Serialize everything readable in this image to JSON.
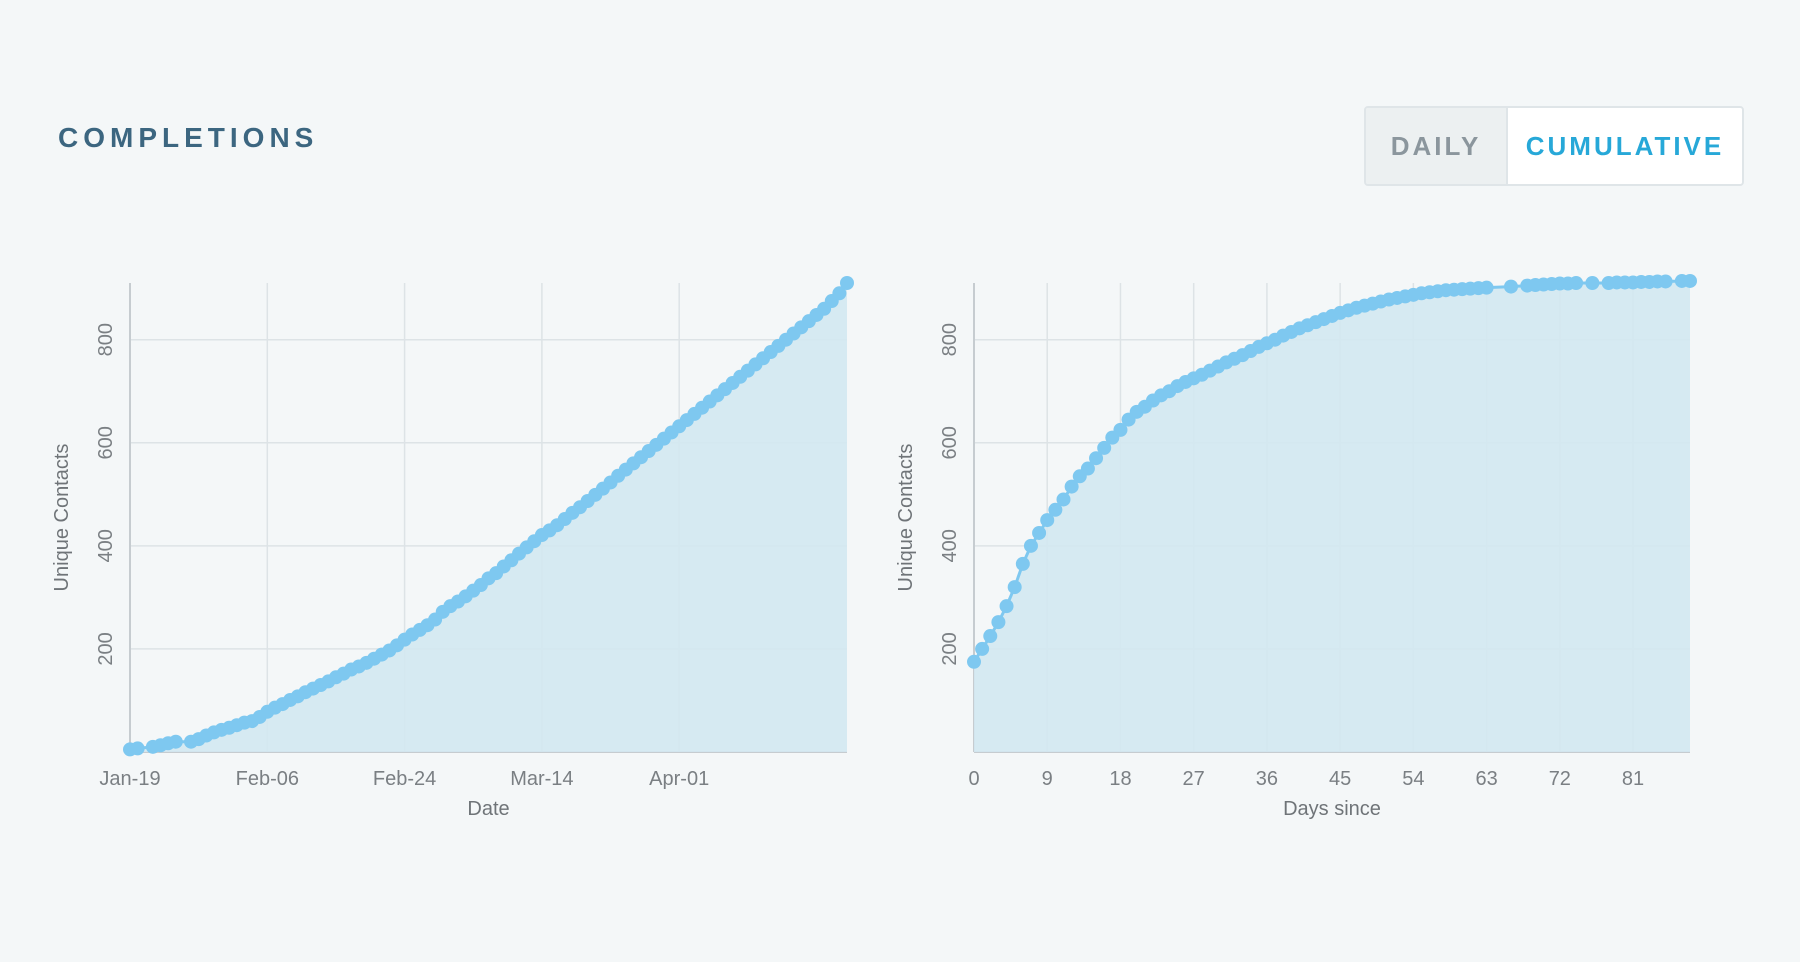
{
  "header": {
    "title": "COMPLETIONS",
    "toggle": {
      "daily_label": "DAILY",
      "cumulative_label": "CUMULATIVE",
      "selected": "CUMULATIVE"
    }
  },
  "colors": {
    "accent": "#27a8d8",
    "point": "#7ec8f0",
    "area": "#d3e8f1",
    "grid": "#dde3e6",
    "title": "#3c6680"
  },
  "chart_data": [
    {
      "type": "area",
      "xlabel": "Date",
      "ylabel": "Unique Contacts",
      "x_ticks": [
        "Jan-19",
        "Feb-06",
        "Feb-24",
        "Mar-14",
        "Apr-01"
      ],
      "y_ticks": [
        200,
        400,
        600,
        800
      ],
      "x_range": [
        "Jan-19",
        "Apr-23"
      ],
      "ylim": [
        0,
        910
      ],
      "grid": true,
      "x": [
        "Jan-19",
        "Jan-20",
        "Jan-22",
        "Jan-23",
        "Jan-24",
        "Jan-25",
        "Jan-27",
        "Jan-28",
        "Jan-29",
        "Jan-30",
        "Jan-31",
        "Feb-01",
        "Feb-02",
        "Feb-03",
        "Feb-04",
        "Feb-05",
        "Feb-06",
        "Feb-07",
        "Feb-08",
        "Feb-09",
        "Feb-10",
        "Feb-11",
        "Feb-12",
        "Feb-13",
        "Feb-14",
        "Feb-15",
        "Feb-16",
        "Feb-17",
        "Feb-18",
        "Feb-19",
        "Feb-20",
        "Feb-21",
        "Feb-22",
        "Feb-23",
        "Feb-24",
        "Feb-25",
        "Feb-26",
        "Feb-27",
        "Feb-28",
        "Mar-01",
        "Mar-02",
        "Mar-03",
        "Mar-04",
        "Mar-05",
        "Mar-06",
        "Mar-07",
        "Mar-08",
        "Mar-09",
        "Mar-10",
        "Mar-11",
        "Mar-12",
        "Mar-13",
        "Mar-14",
        "Mar-15",
        "Mar-16",
        "Mar-17",
        "Mar-18",
        "Mar-19",
        "Mar-20",
        "Mar-21",
        "Mar-22",
        "Mar-23",
        "Mar-24",
        "Mar-25",
        "Mar-26",
        "Mar-27",
        "Mar-28",
        "Mar-29",
        "Mar-30",
        "Mar-31",
        "Apr-01",
        "Apr-02",
        "Apr-03",
        "Apr-04",
        "Apr-05",
        "Apr-06",
        "Apr-07",
        "Apr-08",
        "Apr-09",
        "Apr-10",
        "Apr-11",
        "Apr-12",
        "Apr-13",
        "Apr-14",
        "Apr-15",
        "Apr-16",
        "Apr-17",
        "Apr-18",
        "Apr-19",
        "Apr-20",
        "Apr-21",
        "Apr-22",
        "Apr-23"
      ],
      "y": [
        5,
        7,
        10,
        13,
        17,
        20,
        20,
        25,
        32,
        38,
        43,
        47,
        52,
        57,
        60,
        68,
        78,
        86,
        93,
        101,
        108,
        116,
        123,
        130,
        137,
        145,
        152,
        160,
        166,
        173,
        181,
        189,
        197,
        207,
        218,
        228,
        237,
        246,
        257,
        272,
        283,
        292,
        302,
        313,
        324,
        337,
        347,
        360,
        372,
        385,
        397,
        409,
        421,
        430,
        440,
        452,
        464,
        475,
        487,
        499,
        511,
        523,
        536,
        548,
        560,
        572,
        584,
        596,
        608,
        620,
        632,
        644,
        656,
        668,
        680,
        692,
        704,
        716,
        728,
        740,
        752,
        764,
        776,
        788,
        800,
        812,
        824,
        836,
        848,
        860,
        875,
        890,
        910
      ]
    },
    {
      "type": "area",
      "xlabel": "Days since",
      "ylabel": "Unique Contacts",
      "x_ticks": [
        0,
        9,
        18,
        27,
        36,
        45,
        54,
        63,
        72,
        81
      ],
      "y_ticks": [
        200,
        400,
        600,
        800
      ],
      "xlim": [
        0,
        88
      ],
      "ylim": [
        0,
        910
      ],
      "grid": true,
      "x": [
        0,
        1,
        2,
        3,
        4,
        5,
        6,
        7,
        8,
        9,
        10,
        11,
        12,
        13,
        14,
        15,
        16,
        17,
        18,
        19,
        20,
        21,
        22,
        23,
        24,
        25,
        26,
        27,
        28,
        29,
        30,
        31,
        32,
        33,
        34,
        35,
        36,
        37,
        38,
        39,
        40,
        41,
        42,
        43,
        44,
        45,
        46,
        47,
        48,
        49,
        50,
        51,
        52,
        53,
        54,
        55,
        56,
        57,
        58,
        59,
        60,
        61,
        62,
        63,
        66,
        68,
        69,
        70,
        71,
        72,
        73,
        74,
        76,
        78,
        79,
        80,
        81,
        82,
        83,
        84,
        85,
        87,
        88
      ],
      "y": [
        175,
        200,
        225,
        252,
        283,
        320,
        365,
        400,
        425,
        450,
        470,
        490,
        515,
        535,
        550,
        570,
        590,
        610,
        625,
        645,
        660,
        670,
        682,
        692,
        700,
        710,
        718,
        725,
        732,
        740,
        748,
        756,
        763,
        770,
        778,
        786,
        793,
        800,
        808,
        815,
        822,
        828,
        834,
        840,
        846,
        852,
        857,
        862,
        866,
        870,
        874,
        878,
        881,
        884,
        887,
        890,
        892,
        894,
        896,
        897,
        898,
        899,
        900,
        901,
        903,
        905,
        906,
        907,
        908,
        909,
        909,
        910,
        910,
        910,
        911,
        911,
        911,
        912,
        912,
        913,
        913,
        914,
        914
      ]
    }
  ]
}
